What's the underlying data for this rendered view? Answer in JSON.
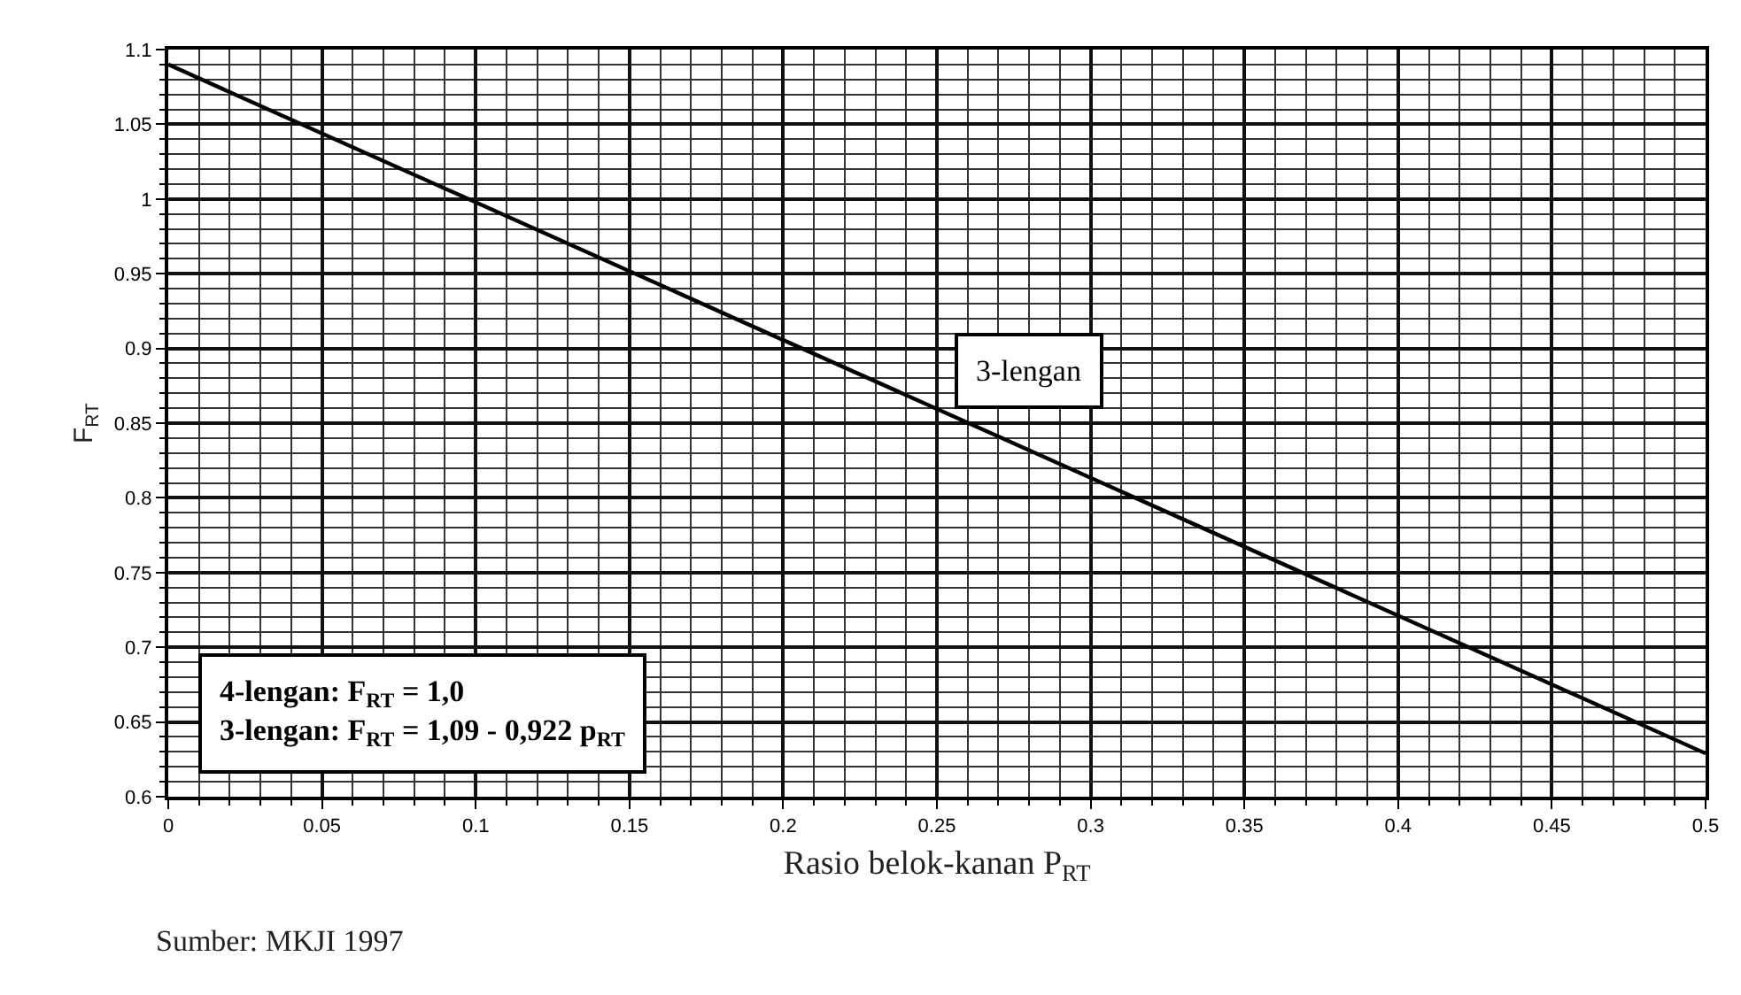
{
  "chart_data": {
    "type": "line",
    "xlabel": "Rasio belok-kanan P$_{RT}$",
    "ylabel": "F$_{RT}$",
    "x": [
      0,
      0.5
    ],
    "series": [
      {
        "name": "3-lengan",
        "color": "#000000",
        "values": [
          1.09,
          0.629
        ]
      }
    ],
    "xlim": [
      0,
      0.5
    ],
    "ylim": [
      0.6,
      1.1
    ],
    "xticks": [
      0,
      0.05,
      0.1,
      0.15,
      0.2,
      0.25,
      0.3,
      0.35,
      0.4,
      0.45,
      0.5
    ],
    "yticks": [
      0.6,
      0.65,
      0.7,
      0.75,
      0.8,
      0.85,
      0.9,
      0.95,
      1,
      1.05,
      1.1
    ],
    "grid": true,
    "legend": false,
    "marker": "none",
    "line_style": "solid",
    "annotations": [
      "4-lengan: F$_{RT}$ = 1,0",
      "3-lengan: F$_{RT}$ = 1,09 - 0,922 p$_{RT}$",
      "Sumber: MKJI 1997"
    ]
  }
}
